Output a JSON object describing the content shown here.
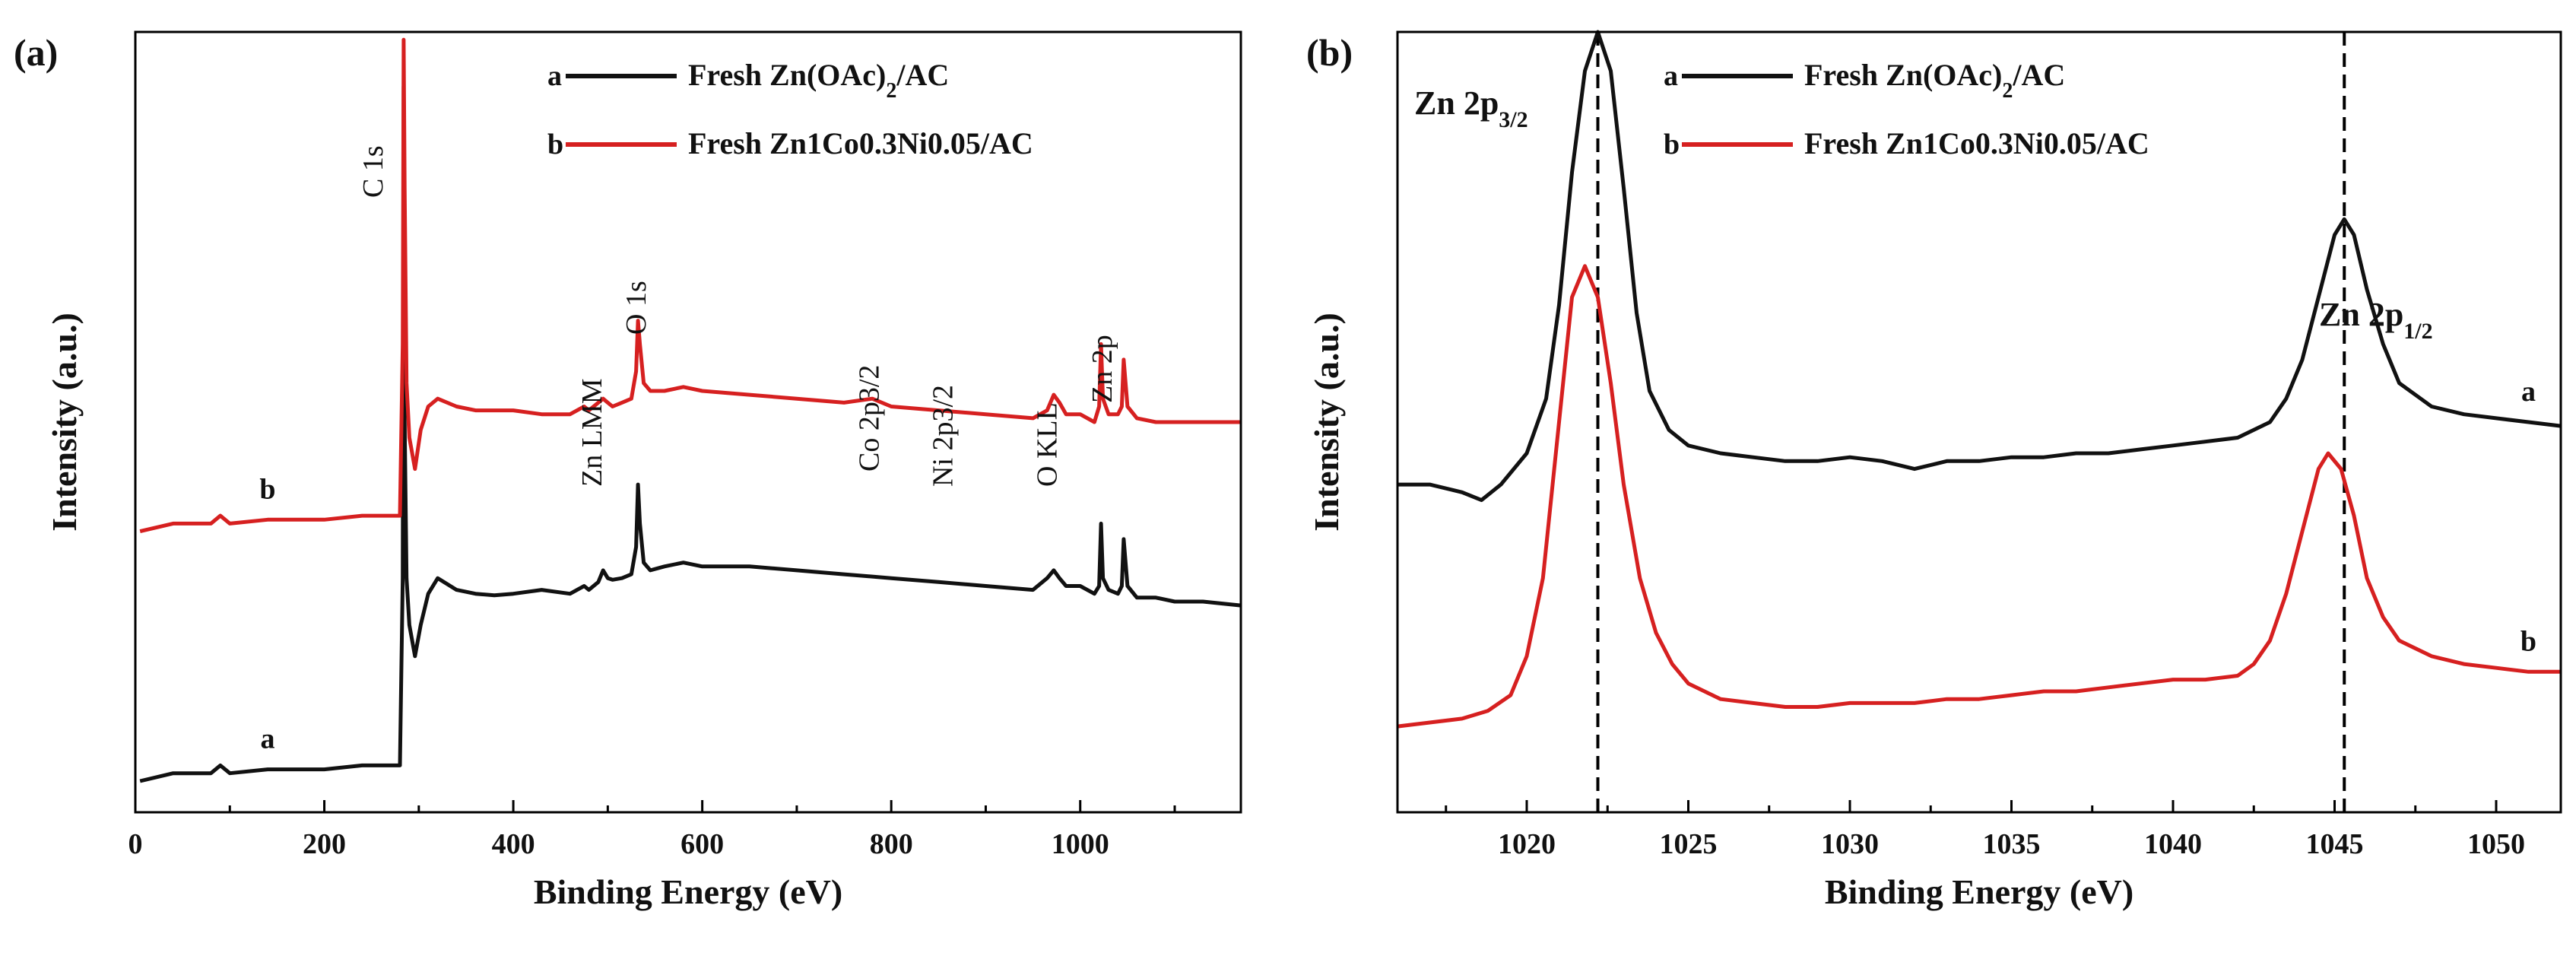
{
  "chart_data": [
    {
      "panel": "(a)",
      "type": "line",
      "xlabel": "Binding Energy (eV)",
      "ylabel": "Intensity (a.u.)",
      "xlim": [
        0,
        1170
      ],
      "ylim": [
        0,
        1
      ],
      "xticks": [
        0,
        200,
        400,
        600,
        800,
        1000
      ],
      "legend": {
        "position": "top-right",
        "entries": [
          {
            "key": "a",
            "name": "Fresh Zn(OAc)",
            "sub": "2",
            "suffix": "/AC",
            "color": "#111111"
          },
          {
            "key": "b",
            "name": "Fresh Zn1Co0.3Ni0.05/AC",
            "sub": "",
            "suffix": "",
            "color": "#d62020"
          }
        ]
      },
      "annotations": [
        {
          "text": "C 1s",
          "x": 284
        },
        {
          "text": "Zn LMM",
          "x": 495
        },
        {
          "text": "O 1s",
          "x": 532
        },
        {
          "text": "Co 2p3/2",
          "x": 780
        },
        {
          "text": "Ni 2p3/2",
          "x": 855
        },
        {
          "text": "O KLL",
          "x": 975
        },
        {
          "text": "Zn 2p",
          "x": 1022
        }
      ],
      "curve_tags": [
        {
          "text": "a",
          "x": 140,
          "series": "a"
        },
        {
          "text": "b",
          "x": 140,
          "series": "b"
        }
      ],
      "series": [
        {
          "name": "a",
          "color": "#111111",
          "x": [
            5,
            40,
            80,
            90,
            100,
            140,
            200,
            240,
            270,
            280,
            283,
            284,
            285,
            287,
            290,
            296,
            302,
            310,
            320,
            340,
            360,
            380,
            400,
            430,
            460,
            475,
            480,
            490,
            495,
            500,
            505,
            515,
            525,
            530,
            532,
            534,
            538,
            545,
            560,
            580,
            600,
            650,
            700,
            750,
            800,
            850,
            900,
            950,
            965,
            972,
            978,
            985,
            1000,
            1015,
            1020,
            1022,
            1024,
            1030,
            1040,
            1044,
            1046,
            1050,
            1060,
            1080,
            1100,
            1130,
            1170
          ],
          "y": [
            0.04,
            0.05,
            0.05,
            0.06,
            0.05,
            0.055,
            0.055,
            0.06,
            0.06,
            0.06,
            0.3,
            0.93,
            0.5,
            0.3,
            0.24,
            0.2,
            0.24,
            0.28,
            0.3,
            0.285,
            0.28,
            0.278,
            0.28,
            0.285,
            0.28,
            0.29,
            0.285,
            0.295,
            0.31,
            0.3,
            0.298,
            0.3,
            0.305,
            0.34,
            0.42,
            0.37,
            0.32,
            0.31,
            0.315,
            0.32,
            0.315,
            0.315,
            0.31,
            0.305,
            0.3,
            0.295,
            0.29,
            0.285,
            0.3,
            0.31,
            0.3,
            0.29,
            0.29,
            0.28,
            0.29,
            0.37,
            0.3,
            0.285,
            0.28,
            0.29,
            0.35,
            0.29,
            0.275,
            0.275,
            0.27,
            0.27,
            0.265
          ]
        },
        {
          "name": "b",
          "color": "#d62020",
          "x": [
            5,
            40,
            80,
            90,
            100,
            140,
            200,
            240,
            270,
            280,
            283,
            284,
            285,
            287,
            290,
            296,
            302,
            310,
            320,
            340,
            360,
            380,
            400,
            430,
            460,
            475,
            480,
            490,
            495,
            500,
            505,
            515,
            525,
            530,
            532,
            534,
            538,
            545,
            560,
            580,
            600,
            650,
            700,
            750,
            780,
            800,
            850,
            900,
            950,
            965,
            972,
            978,
            985,
            1000,
            1015,
            1020,
            1022,
            1024,
            1030,
            1040,
            1044,
            1046,
            1050,
            1060,
            1080,
            1100,
            1130,
            1170
          ],
          "y": [
            0.36,
            0.37,
            0.37,
            0.38,
            0.37,
            0.375,
            0.375,
            0.38,
            0.38,
            0.38,
            0.6,
            0.99,
            0.8,
            0.55,
            0.48,
            0.44,
            0.49,
            0.52,
            0.53,
            0.52,
            0.515,
            0.515,
            0.515,
            0.51,
            0.51,
            0.52,
            0.515,
            0.525,
            0.53,
            0.525,
            0.52,
            0.525,
            0.53,
            0.565,
            0.63,
            0.6,
            0.55,
            0.54,
            0.54,
            0.545,
            0.54,
            0.535,
            0.53,
            0.525,
            0.53,
            0.52,
            0.515,
            0.51,
            0.505,
            0.515,
            0.535,
            0.525,
            0.51,
            0.51,
            0.5,
            0.52,
            0.6,
            0.53,
            0.51,
            0.51,
            0.52,
            0.58,
            0.52,
            0.505,
            0.5,
            0.5,
            0.5,
            0.5
          ]
        }
      ]
    },
    {
      "panel": "(b)",
      "type": "line",
      "xlabel": "Binding Energy (eV)",
      "ylabel": "Intensity (a.u.)",
      "xlim": [
        1016,
        1052
      ],
      "ylim": [
        0,
        1
      ],
      "xticks": [
        1020,
        1025,
        1030,
        1035,
        1040,
        1045,
        1050
      ],
      "reference_lines": [
        1022.2,
        1045.3
      ],
      "legend": {
        "position": "top-center",
        "entries": [
          {
            "key": "a",
            "name": "Fresh Zn(OAc)",
            "sub": "2",
            "suffix": "/AC",
            "color": "#111111"
          },
          {
            "key": "b",
            "name": "Fresh Zn1Co0.3Ni0.05/AC",
            "sub": "",
            "suffix": "",
            "color": "#d62020"
          }
        ]
      },
      "annotations": [
        {
          "text": "Zn 2p",
          "sub": "3/2",
          "x": 1022.2
        },
        {
          "text": "Zn 2p",
          "sub": "1/2",
          "x": 1045.3
        }
      ],
      "curve_tags": [
        {
          "text": "a",
          "x": 1051,
          "series": "a"
        },
        {
          "text": "b",
          "x": 1051,
          "series": "b"
        }
      ],
      "series": [
        {
          "name": "a",
          "color": "#111111",
          "x": [
            1016,
            1017,
            1018,
            1018.6,
            1019.2,
            1020,
            1020.6,
            1021,
            1021.4,
            1021.8,
            1022.2,
            1022.6,
            1023,
            1023.4,
            1023.8,
            1024.4,
            1025,
            1026,
            1027,
            1028,
            1029,
            1030,
            1031,
            1032,
            1033,
            1034,
            1035,
            1036,
            1037,
            1038,
            1039,
            1040,
            1041,
            1042,
            1043,
            1043.5,
            1044,
            1044.5,
            1045,
            1045.3,
            1045.6,
            1046,
            1046.5,
            1047,
            1048,
            1049,
            1050,
            1051,
            1052
          ],
          "y": [
            0.42,
            0.42,
            0.41,
            0.4,
            0.42,
            0.46,
            0.53,
            0.65,
            0.82,
            0.95,
            1.0,
            0.95,
            0.8,
            0.64,
            0.54,
            0.49,
            0.47,
            0.46,
            0.455,
            0.45,
            0.45,
            0.455,
            0.45,
            0.44,
            0.45,
            0.45,
            0.455,
            0.455,
            0.46,
            0.46,
            0.465,
            0.47,
            0.475,
            0.48,
            0.5,
            0.53,
            0.58,
            0.66,
            0.74,
            0.76,
            0.74,
            0.67,
            0.6,
            0.55,
            0.52,
            0.51,
            0.505,
            0.5,
            0.495
          ]
        },
        {
          "name": "b",
          "color": "#d62020",
          "x": [
            1016,
            1017,
            1018,
            1018.8,
            1019.5,
            1020,
            1020.5,
            1021,
            1021.4,
            1021.8,
            1022.2,
            1022.6,
            1023,
            1023.5,
            1024,
            1024.5,
            1025,
            1026,
            1027,
            1028,
            1029,
            1030,
            1031,
            1032,
            1033,
            1034,
            1035,
            1036,
            1037,
            1038,
            1039,
            1040,
            1041,
            1042,
            1042.5,
            1043,
            1043.5,
            1044,
            1044.5,
            1044.8,
            1045.2,
            1045.6,
            1046,
            1046.5,
            1047,
            1048,
            1049,
            1050,
            1051,
            1052
          ],
          "y": [
            0.11,
            0.115,
            0.12,
            0.13,
            0.15,
            0.2,
            0.3,
            0.5,
            0.66,
            0.7,
            0.66,
            0.55,
            0.42,
            0.3,
            0.23,
            0.19,
            0.165,
            0.145,
            0.14,
            0.135,
            0.135,
            0.14,
            0.14,
            0.14,
            0.145,
            0.145,
            0.15,
            0.155,
            0.155,
            0.16,
            0.165,
            0.17,
            0.17,
            0.175,
            0.19,
            0.22,
            0.28,
            0.36,
            0.44,
            0.46,
            0.44,
            0.38,
            0.3,
            0.25,
            0.22,
            0.2,
            0.19,
            0.185,
            0.18,
            0.18
          ]
        }
      ]
    }
  ]
}
